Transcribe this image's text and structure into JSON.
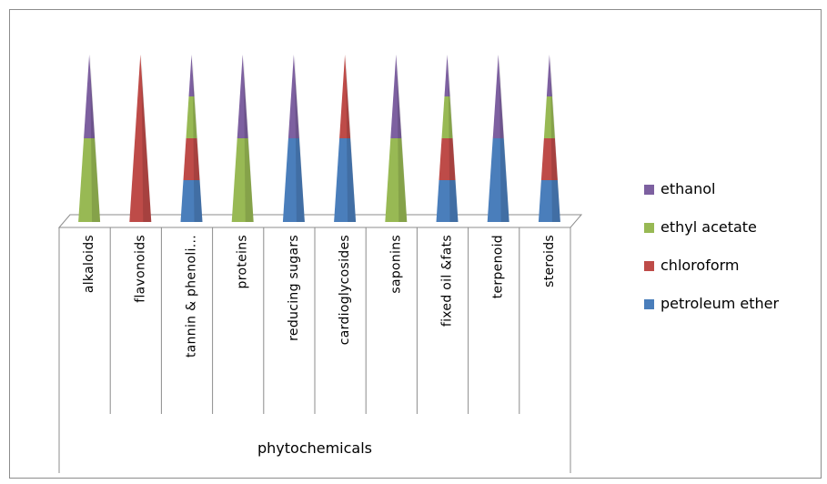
{
  "chart_data": {
    "type": "bar",
    "style": "stacked 3-D cone",
    "categories": [
      "alkaloids",
      "flavonoids",
      "tannin & phenoli...",
      "proteins",
      "reducing sugars",
      "cardioglycosides",
      "saponins",
      "fixed oil &fats",
      "terpenoid",
      "steroids"
    ],
    "series": [
      {
        "name": "petroleum ether",
        "color": "#4a7ebb",
        "values": [
          0,
          0,
          1,
          0,
          2,
          2,
          0,
          1,
          2,
          1
        ]
      },
      {
        "name": "chloroform",
        "color": "#be4b48",
        "values": [
          0,
          4,
          1,
          0,
          0,
          2,
          0,
          1,
          0,
          1
        ]
      },
      {
        "name": "ethyl acetate",
        "color": "#98b954",
        "values": [
          2,
          0,
          1,
          2,
          0,
          0,
          2,
          1,
          0,
          1
        ]
      },
      {
        "name": "ethanol",
        "color": "#7d60a0",
        "values": [
          2,
          0,
          1,
          2,
          2,
          0,
          2,
          1,
          2,
          1
        ]
      }
    ],
    "group_label": "phytochemicals",
    "legend_position": "right",
    "legend_order": [
      "ethanol",
      "ethyl acetate",
      "chloroform",
      "petroleum ether"
    ],
    "ylim": [
      0,
      4
    ],
    "grid": false
  }
}
